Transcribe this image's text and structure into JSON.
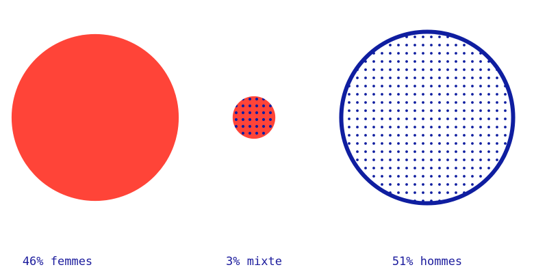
{
  "chart_data": {
    "type": "bubble",
    "title": "",
    "items": [
      {
        "label": "46% femmes",
        "percent": 46,
        "category": "femmes",
        "style": "solid"
      },
      {
        "label": "3% mixte",
        "percent": 3,
        "category": "mixte",
        "style": "dotted-on-red"
      },
      {
        "label": "51% hommes",
        "percent": 51,
        "category": "hommes",
        "style": "dotted-outline"
      }
    ],
    "colors": {
      "red": "#ff4438",
      "blue": "#0f1ea0",
      "background": "#ffffff"
    }
  }
}
